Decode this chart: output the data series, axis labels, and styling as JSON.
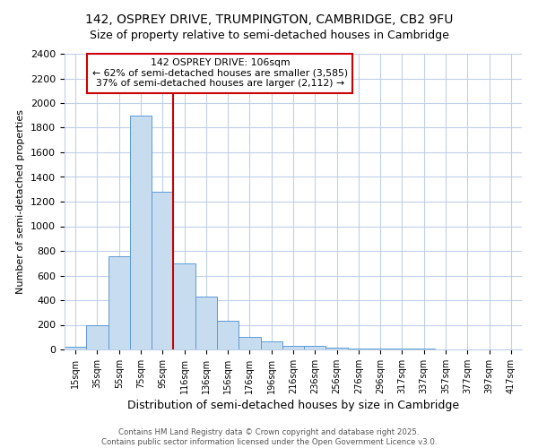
{
  "title1": "142, OSPREY DRIVE, TRUMPINGTON, CAMBRIDGE, CB2 9FU",
  "title2": "Size of property relative to semi-detached houses in Cambridge",
  "xlabel": "Distribution of semi-detached houses by size in Cambridge",
  "ylabel": "Number of semi-detached properties",
  "categories": [
    "15sqm",
    "35sqm",
    "55sqm",
    "75sqm",
    "95sqm",
    "116sqm",
    "136sqm",
    "156sqm",
    "176sqm",
    "196sqm",
    "216sqm",
    "236sqm",
    "256sqm",
    "276sqm",
    "296sqm",
    "317sqm",
    "337sqm",
    "357sqm",
    "377sqm",
    "397sqm",
    "417sqm"
  ],
  "values": [
    25,
    200,
    760,
    1900,
    1280,
    700,
    430,
    230,
    105,
    65,
    30,
    30,
    15,
    10,
    5,
    5,
    5,
    3,
    2,
    1,
    0
  ],
  "bar_color": "#c8dcf0",
  "bar_edge_color": "#5b9bd5",
  "vline_color": "#cc0000",
  "annotation_title": "142 OSPREY DRIVE: 106sqm",
  "annotation_line1": "← 62% of semi-detached houses are smaller (3,585)",
  "annotation_line2": "37% of semi-detached houses are larger (2,112) →",
  "box_color": "#cc0000",
  "ylim": [
    0,
    2400
  ],
  "yticks": [
    0,
    200,
    400,
    600,
    800,
    1000,
    1200,
    1400,
    1600,
    1800,
    2000,
    2200,
    2400
  ],
  "footer1": "Contains HM Land Registry data © Crown copyright and database right 2025.",
  "footer2": "Contains public sector information licensed under the Open Government Licence v3.0.",
  "bg_color": "#ffffff",
  "grid_color": "#c0d0e8",
  "title_fontsize": 10,
  "subtitle_fontsize": 9
}
